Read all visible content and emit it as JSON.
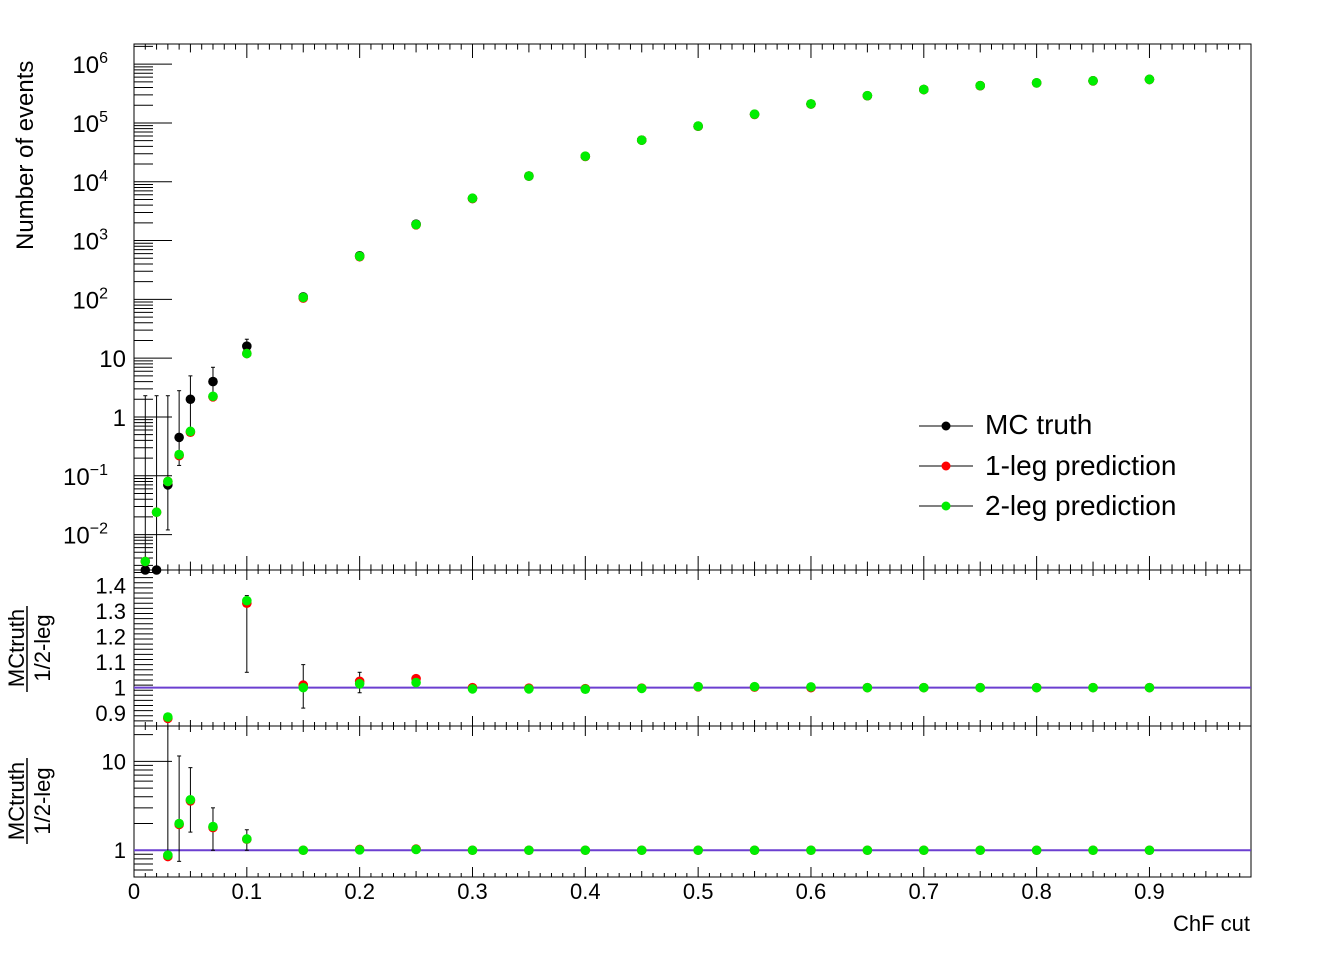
{
  "chart_data": [
    {
      "type": "scatter",
      "panel": "main",
      "ylabel": "Number of events",
      "yscale": "log",
      "ylim": [
        0.0025,
        2200000
      ],
      "xlim": [
        0,
        0.99
      ],
      "yticks": [
        {
          "v": 0.01,
          "base": "10",
          "exp": "−2"
        },
        {
          "v": 0.1,
          "base": "10",
          "exp": "−1"
        },
        {
          "v": 1,
          "base": "1",
          "exp": ""
        },
        {
          "v": 10,
          "base": "10",
          "exp": ""
        },
        {
          "v": 100,
          "base": "10",
          "exp": "2"
        },
        {
          "v": 1000,
          "base": "10",
          "exp": "3"
        },
        {
          "v": 10000,
          "base": "10",
          "exp": "4"
        },
        {
          "v": 100000,
          "base": "10",
          "exp": "5"
        },
        {
          "v": 1000000,
          "base": "10",
          "exp": "6"
        }
      ],
      "legend": {
        "position": "right",
        "entries": [
          "MC truth",
          "1-leg prediction",
          "2-leg prediction"
        ]
      },
      "series": [
        {
          "name": "MC truth",
          "color": "#000000",
          "x": [
            0.01,
            0.02,
            0.03,
            0.04,
            0.05,
            0.07,
            0.1,
            0.15,
            0.2,
            0.25,
            0.3,
            0.35,
            0.4,
            0.45,
            0.5,
            0.55,
            0.6,
            0.65,
            0.7,
            0.75,
            0.8,
            0.85,
            0.9
          ],
          "y": [
            0.0025,
            0.0025,
            0.07,
            0.45,
            2.0,
            4.0,
            16,
            110,
            550,
            1900,
            5200,
            12500,
            27000,
            51000,
            88000,
            140000,
            210000,
            290000,
            370000,
            430000,
            480000,
            520000,
            550000
          ],
          "ylow": [
            null,
            null,
            0.012,
            0.15,
            0.5,
            2.2,
            12,
            null,
            null,
            null,
            null,
            null,
            null,
            null,
            null,
            null,
            null,
            null,
            null,
            null,
            null,
            null,
            null
          ],
          "yhigh": [
            2.3,
            2.3,
            2.3,
            2.8,
            5.0,
            7.0,
            21,
            null,
            null,
            null,
            null,
            null,
            null,
            null,
            null,
            null,
            null,
            null,
            null,
            null,
            null,
            null,
            null
          ]
        },
        {
          "name": "1-leg prediction",
          "color": "#ff0000",
          "x": [
            0.01,
            0.02,
            0.03,
            0.04,
            0.05,
            0.07,
            0.1,
            0.15,
            0.2,
            0.25,
            0.3,
            0.35,
            0.4,
            0.45,
            0.5,
            0.55,
            0.6,
            0.65,
            0.7,
            0.75,
            0.8,
            0.85,
            0.9
          ],
          "y": [
            0.0035,
            0.024,
            0.08,
            0.22,
            0.55,
            2.2,
            12,
            105,
            530,
            1850,
            5200,
            12500,
            27000,
            51000,
            88000,
            140000,
            210000,
            290000,
            370000,
            430000,
            480000,
            520000,
            550000
          ]
        },
        {
          "name": "2-leg prediction",
          "color": "#00ee00",
          "x": [
            0.01,
            0.02,
            0.03,
            0.04,
            0.05,
            0.07,
            0.1,
            0.15,
            0.2,
            0.25,
            0.3,
            0.35,
            0.4,
            0.45,
            0.5,
            0.55,
            0.6,
            0.65,
            0.7,
            0.75,
            0.8,
            0.85,
            0.9
          ],
          "y": [
            0.0035,
            0.024,
            0.08,
            0.23,
            0.57,
            2.25,
            12,
            108,
            540,
            1870,
            5250,
            12500,
            27200,
            51000,
            88500,
            141000,
            211000,
            291000,
            371000,
            431000,
            481000,
            521000,
            551000
          ]
        }
      ]
    },
    {
      "type": "scatter",
      "panel": "ratio-linear",
      "ylabel_num": "MCtruth",
      "ylabel_den": "1/2-leg",
      "ylim": [
        0.85,
        1.46
      ],
      "xlim": [
        0,
        0.99
      ],
      "yticks": [
        0.9,
        1,
        1.1,
        1.2,
        1.3,
        1.4
      ],
      "ytick_labels": [
        "0.9",
        "1",
        "1.1",
        "1.2",
        "1.3",
        "1.4"
      ],
      "reference_line": 1,
      "reference_color": "#6b3fd0",
      "series": [
        {
          "name": "1-leg",
          "color": "#ff0000",
          "x": [
            0.03,
            0.1,
            0.15,
            0.2,
            0.25,
            0.3,
            0.35,
            0.4,
            0.45,
            0.5,
            0.55,
            0.6,
            0.65,
            0.7,
            0.75,
            0.8,
            0.85,
            0.9
          ],
          "y": [
            0.88,
            1.33,
            1.01,
            1.025,
            1.035,
            1.0,
            0.998,
            0.996,
            0.998,
            1.003,
            1.002,
            1.0,
            1.0,
            1.0,
            1.0,
            1.0,
            1.0,
            1.0
          ],
          "ylow": [
            null,
            1.06,
            0.92,
            0.98,
            1.01,
            null,
            null,
            null,
            null,
            null,
            null,
            null,
            null,
            null,
            null,
            null,
            null,
            null
          ],
          "yhigh": [
            null,
            1.36,
            1.09,
            1.06,
            1.045,
            null,
            null,
            null,
            null,
            null,
            null,
            null,
            null,
            null,
            null,
            null,
            null,
            null
          ]
        },
        {
          "name": "2-leg",
          "color": "#00ee00",
          "x": [
            0.03,
            0.1,
            0.15,
            0.2,
            0.25,
            0.3,
            0.35,
            0.4,
            0.45,
            0.5,
            0.55,
            0.6,
            0.65,
            0.7,
            0.75,
            0.8,
            0.85,
            0.9
          ],
          "y": [
            0.885,
            1.34,
            1.0,
            1.015,
            1.02,
            0.995,
            0.995,
            0.994,
            0.997,
            1.004,
            1.004,
            1.003,
            1.0,
            1.0,
            1.0,
            1.0,
            1.0,
            1.0
          ]
        }
      ]
    },
    {
      "type": "scatter",
      "panel": "ratio-log",
      "ylabel_num": "MCtruth",
      "ylabel_den": "1/2-leg",
      "yscale": "log",
      "ylim": [
        0.5,
        25
      ],
      "xlim": [
        0,
        0.99
      ],
      "yticks": [
        1,
        10
      ],
      "ytick_labels": [
        "1",
        "10"
      ],
      "reference_line": 1,
      "reference_color": "#6b3fd0",
      "xlabel": "ChF cut",
      "xticks": [
        0,
        0.1,
        0.2,
        0.3,
        0.4,
        0.5,
        0.6,
        0.7,
        0.8,
        0.9
      ],
      "xtick_labels": [
        "0",
        "0.1",
        "0.2",
        "0.3",
        "0.4",
        "0.5",
        "0.6",
        "0.7",
        "0.8",
        "0.9"
      ],
      "series": [
        {
          "name": "1-leg",
          "color": "#ff0000",
          "x": [
            0.03,
            0.04,
            0.05,
            0.07,
            0.1,
            0.15,
            0.2,
            0.25,
            0.3,
            0.35,
            0.4,
            0.45,
            0.5,
            0.55,
            0.6,
            0.65,
            0.7,
            0.75,
            0.8,
            0.85,
            0.9
          ],
          "y": [
            0.85,
            1.95,
            3.6,
            1.8,
            1.33,
            1.0,
            1.02,
            1.03,
            1.0,
            1.0,
            1.0,
            1.0,
            1.0,
            1.0,
            1.0,
            1.0,
            1.0,
            1.0,
            1.0,
            1.0,
            1.0
          ],
          "ylow": [
            null,
            0.75,
            1.6,
            1.0,
            1.0,
            null,
            null,
            null,
            null,
            null,
            null,
            null,
            null,
            null,
            null,
            null,
            null,
            null,
            null,
            null,
            null
          ],
          "yhigh": [
            25,
            11.5,
            8.5,
            3.0,
            1.7,
            null,
            null,
            null,
            null,
            null,
            null,
            null,
            null,
            null,
            null,
            null,
            null,
            null,
            null,
            null,
            null
          ]
        },
        {
          "name": "2-leg",
          "color": "#00ee00",
          "x": [
            0.03,
            0.04,
            0.05,
            0.07,
            0.1,
            0.15,
            0.2,
            0.25,
            0.3,
            0.35,
            0.4,
            0.45,
            0.5,
            0.55,
            0.6,
            0.65,
            0.7,
            0.75,
            0.8,
            0.85,
            0.9
          ],
          "y": [
            0.88,
            2.0,
            3.7,
            1.85,
            1.34,
            1.0,
            1.01,
            1.02,
            1.0,
            1.0,
            1.0,
            1.0,
            1.0,
            1.0,
            1.0,
            1.0,
            1.0,
            1.0,
            1.0,
            1.0,
            1.0
          ]
        }
      ]
    }
  ]
}
